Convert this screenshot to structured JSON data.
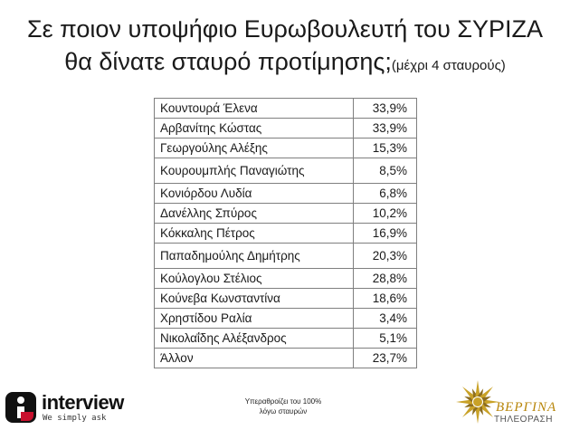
{
  "title_line1": "Σε ποιον υποψήφιο Ευρωβουλευτή του ΣΥΡΙΖΑ",
  "title_line2": "θα δίνατε σταυρό προτίμησης;",
  "title_line2_small": "(μέχρι 4 σταυρούς)",
  "note_line1": "Υπεραθροίζει του 100%",
  "note_line2": "λόγω σταυρών",
  "logo_interview": {
    "word": "interview",
    "tagline": "We simply ask",
    "accent_color": "#c8102e"
  },
  "logo_vergina": {
    "word": "ΒΕΡΓΙΝΑ",
    "subtitle": "ΤΗΛΕΟΡΑΣΗ",
    "color": "#b8860b"
  },
  "chart_data": {
    "type": "table",
    "unit": "%",
    "rows": [
      {
        "name": "Κουντουρά Έλενα",
        "value": 33.9,
        "label": "33,9%"
      },
      {
        "name": "Αρβανίτης Κώστας",
        "value": 33.9,
        "label": "33,9%"
      },
      {
        "name": "Γεωργούλης Αλέξης",
        "value": 15.3,
        "label": "15,3%"
      },
      {
        "name": "Κουρουμπλής Παναγιώτης",
        "value": 8.5,
        "label": "8,5%"
      },
      {
        "name": "Κονιόρδου Λυδία",
        "value": 6.8,
        "label": "6,8%"
      },
      {
        "name": "Δανέλλης Σπύρος",
        "value": 10.2,
        "label": "10,2%"
      },
      {
        "name": "Κόκκαλης Πέτρος",
        "value": 16.9,
        "label": "16,9%"
      },
      {
        "name": "Παπαδημούλης Δημήτρης",
        "value": 20.3,
        "label": "20,3%"
      },
      {
        "name": "Κούλογλου Στέλιος",
        "value": 28.8,
        "label": "28,8%"
      },
      {
        "name": "Κούνεβα Κωνσταντίνα",
        "value": 18.6,
        "label": "18,6%"
      },
      {
        "name": "Χρηστίδου Ραλία",
        "value": 3.4,
        "label": "3,4%"
      },
      {
        "name": "Νικολαΐδης Αλέξανδρος",
        "value": 5.1,
        "label": "5,1%"
      },
      {
        "name": "Άλλον",
        "value": 23.7,
        "label": "23,7%"
      }
    ]
  }
}
